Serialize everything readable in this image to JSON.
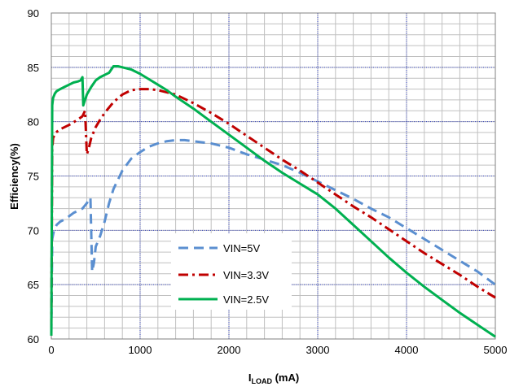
{
  "chart_data": {
    "type": "line",
    "title": "",
    "xlabel": {
      "main": "I",
      "sub": "LOAD",
      "unit": " (mA)"
    },
    "ylabel": "Efficiency(%)",
    "xlim": [
      0,
      5000
    ],
    "ylim": [
      60,
      90
    ],
    "x_major_ticks": [
      0,
      1000,
      2000,
      3000,
      4000,
      5000
    ],
    "y_major_ticks": [
      60,
      65,
      70,
      75,
      80,
      85,
      90
    ],
    "x_tick_labels": [
      "0",
      "1000",
      "2000",
      "3000",
      "4000",
      "5000"
    ],
    "y_tick_labels": [
      "60",
      "65",
      "70",
      "75",
      "80",
      "85",
      "90"
    ],
    "x_minor_step": 200,
    "y_minor_step": 1,
    "grid": true,
    "colors": {
      "major_grid": "#2f3fbf",
      "minor_grid": "#c0c0c0",
      "frame": "#808080"
    },
    "legend": {
      "position": "center-left"
    },
    "series": [
      {
        "name": "VIN=5V",
        "color": "#5b8fd0",
        "dash": "long-dash",
        "x": [
          0,
          10,
          30,
          60,
          100,
          150,
          200,
          250,
          300,
          350,
          400,
          420,
          440,
          460,
          480,
          500,
          550,
          600,
          650,
          700,
          800,
          900,
          1000,
          1100,
          1200,
          1300,
          1400,
          1500,
          1600,
          1700,
          1800,
          1900,
          2000,
          2200,
          2400,
          2600,
          2800,
          3000,
          3200,
          3400,
          3600,
          3800,
          4000,
          4200,
          4400,
          4600,
          4800,
          5000
        ],
        "y": [
          60.5,
          69.2,
          70.0,
          70.5,
          70.8,
          71.0,
          71.3,
          71.6,
          71.8,
          72.0,
          72.5,
          72.8,
          73.0,
          66.2,
          67.0,
          68.5,
          69.5,
          70.8,
          72.5,
          73.8,
          75.5,
          76.6,
          77.2,
          77.7,
          78.0,
          78.2,
          78.3,
          78.3,
          78.2,
          78.1,
          78.0,
          77.8,
          77.6,
          77.0,
          76.5,
          76.0,
          75.3,
          74.5,
          73.7,
          72.9,
          72.0,
          71.2,
          70.2,
          69.2,
          68.2,
          67.2,
          66.2,
          65.0
        ]
      },
      {
        "name": "VIN=3.3V",
        "color": "#c00000",
        "dash": "dash-dot",
        "x": [
          0,
          10,
          20,
          50,
          100,
          200,
          300,
          350,
          380,
          400,
          420,
          450,
          500,
          550,
          600,
          700,
          800,
          900,
          1000,
          1100,
          1200,
          1400,
          1600,
          1800,
          2000,
          2200,
          2400,
          2600,
          2800,
          3000,
          3200,
          3400,
          3600,
          3800,
          4000,
          4200,
          4400,
          4600,
          4800,
          5000
        ],
        "y": [
          61.0,
          77.5,
          78.5,
          79.0,
          79.3,
          79.7,
          80.2,
          80.5,
          81.0,
          77.0,
          77.5,
          78.5,
          79.5,
          80.2,
          80.8,
          81.8,
          82.5,
          82.9,
          83.0,
          83.0,
          82.9,
          82.5,
          81.7,
          80.8,
          79.8,
          78.7,
          77.6,
          76.5,
          75.5,
          74.4,
          73.3,
          72.2,
          71.2,
          70.1,
          69.0,
          67.9,
          66.9,
          65.9,
          64.8,
          63.8
        ]
      },
      {
        "name": "VIN=2.5V",
        "color": "#00b050",
        "dash": "solid",
        "x": [
          0,
          10,
          20,
          40,
          60,
          100,
          150,
          200,
          250,
          300,
          330,
          350,
          360,
          380,
          400,
          450,
          500,
          550,
          600,
          650,
          700,
          750,
          800,
          900,
          1000,
          1100,
          1200,
          1300,
          1400,
          1600,
          1800,
          2000,
          2200,
          2400,
          2600,
          2800,
          3000,
          3200,
          3400,
          3600,
          3800,
          4000,
          4200,
          4400,
          4600,
          4800,
          5000
        ],
        "y": [
          60.3,
          81.5,
          82.2,
          82.6,
          82.8,
          83.0,
          83.2,
          83.4,
          83.6,
          83.7,
          83.8,
          84.1,
          81.5,
          82.0,
          82.5,
          83.2,
          83.8,
          84.1,
          84.3,
          84.5,
          85.1,
          85.1,
          85.0,
          84.8,
          84.4,
          83.9,
          83.4,
          82.9,
          82.3,
          81.2,
          80.0,
          78.8,
          77.6,
          76.4,
          75.3,
          74.3,
          73.3,
          72.0,
          70.5,
          69.0,
          67.5,
          66.1,
          64.8,
          63.6,
          62.4,
          61.3,
          60.2
        ]
      }
    ]
  }
}
